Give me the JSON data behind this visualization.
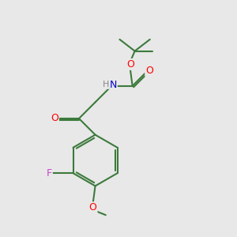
{
  "bg_color": "#e8e8e8",
  "bond_color": "#3d7a3d",
  "bond_width": 1.5,
  "atom_colors": {
    "O": "#ff0000",
    "N": "#0000cc",
    "F": "#cc44cc",
    "H": "#888888"
  },
  "font_size": 9
}
